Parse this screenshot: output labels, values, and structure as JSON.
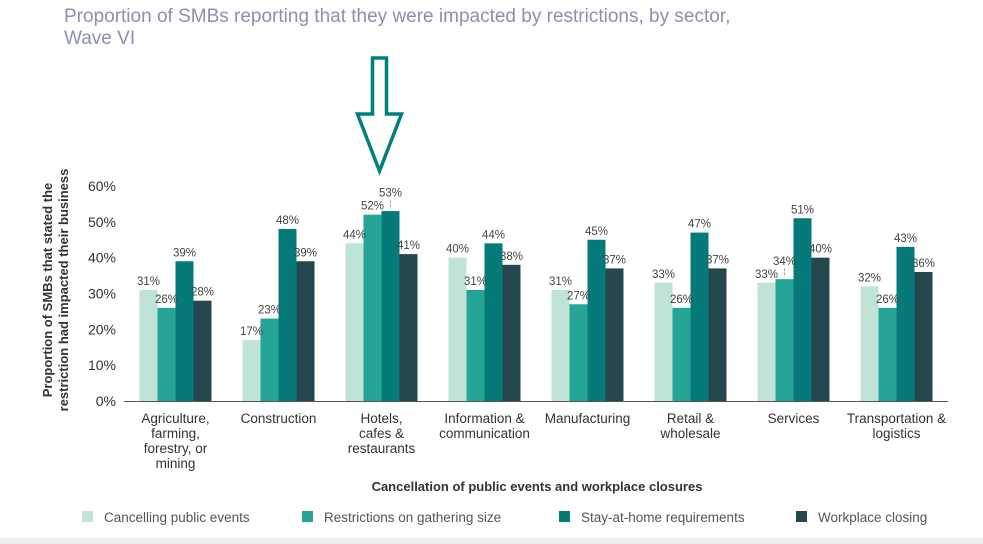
{
  "chart_data": {
    "type": "bar",
    "title": "Proportion of SMBs reporting that they were impacted by restrictions, by sector, Wave VI",
    "xlabel": "Cancellation of public events and workplace closures",
    "ylabel_lines": [
      "Proportion of SMBs that stated the",
      "restriction had impacted their business"
    ],
    "ylim": [
      0,
      60
    ],
    "yticks": [
      "0%",
      "10%",
      "20%",
      "30%",
      "40%",
      "50%",
      "60%"
    ],
    "categories": [
      [
        "Agriculture,",
        "farming,",
        "forestry, or",
        "mining"
      ],
      [
        "Construction"
      ],
      [
        "Hotels,",
        "cafes &",
        "restaurants"
      ],
      [
        "Information &",
        "communication"
      ],
      [
        "Manufacturing"
      ],
      [
        "Retail &",
        "wholesale"
      ],
      [
        "Services"
      ],
      [
        "Transportation &",
        "logistics"
      ]
    ],
    "series": [
      {
        "name": "Cancelling public events",
        "color": "#bfe3d6",
        "values": [
          31,
          17,
          44,
          40,
          31,
          33,
          33,
          32
        ],
        "labels": [
          "31%",
          "17%",
          "44%",
          "40%",
          "31%",
          "33%",
          "33%",
          "32%"
        ]
      },
      {
        "name": "Restrictions on gathering size",
        "color": "#26a597",
        "values": [
          26,
          23,
          52,
          31,
          27,
          26,
          34,
          26
        ],
        "labels": [
          "26%",
          "23%",
          "52%",
          "31%",
          "27%",
          "26%",
          "34%",
          "26%"
        ]
      },
      {
        "name": "Stay-at-home requirements",
        "color": "#067a79",
        "values": [
          39,
          48,
          53,
          44,
          45,
          47,
          51,
          43
        ],
        "labels": [
          "39%",
          "48%",
          "53%",
          "44%",
          "45%",
          "47%",
          "51%",
          "43%"
        ]
      },
      {
        "name": "Workplace closing",
        "color": "#25484f",
        "values": [
          28,
          39,
          41,
          38,
          37,
          37,
          40,
          36
        ],
        "labels": [
          "28%",
          "39%",
          "41%",
          "38%",
          "37%",
          "37%",
          "40%",
          "36%"
        ]
      }
    ],
    "grid": false,
    "legend_position": "bottom",
    "annotation": {
      "type": "arrow",
      "target_category": "Hotels, cafes & restaurants",
      "color": "#00807d"
    }
  }
}
